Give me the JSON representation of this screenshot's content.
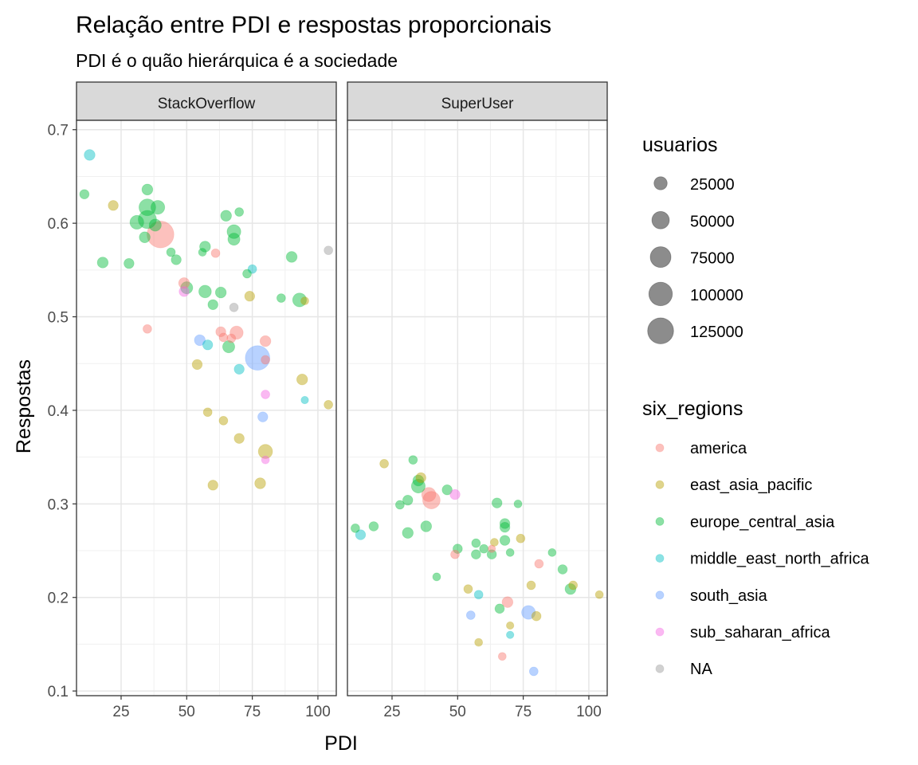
{
  "chart_data": {
    "type": "scatter",
    "title": "Relação entre PDI e respostas proporcionais",
    "subtitle": "PDI é o quão hierárquica é a sociedade",
    "xlabel": "PDI",
    "ylabel": "Respostas",
    "xlim": [
      8,
      107
    ],
    "ylim": [
      0.095,
      0.71
    ],
    "x_ticks": [
      25,
      50,
      75,
      100
    ],
    "y_ticks": [
      0.1,
      0.2,
      0.3,
      0.4,
      0.5,
      0.6,
      0.7
    ],
    "grid": true,
    "point_opacity": 0.45,
    "legend_position": "right",
    "size_legend": {
      "title": "usuarios",
      "values": [
        25000,
        50000,
        75000,
        100000,
        125000
      ]
    },
    "color_legend": {
      "title": "six_regions",
      "entries": [
        {
          "name": "america",
          "color": "#F8766D"
        },
        {
          "name": "east_asia_pacific",
          "color": "#B79F00"
        },
        {
          "name": "europe_central_asia",
          "color": "#00BA38"
        },
        {
          "name": "middle_east_north_africa",
          "color": "#00BFC4"
        },
        {
          "name": "south_asia",
          "color": "#619CFF"
        },
        {
          "name": "sub_saharan_africa",
          "color": "#F564E3"
        },
        {
          "name": "NA",
          "color": "#999999"
        }
      ]
    },
    "facets": [
      {
        "label": "StackOverflow",
        "points": [
          {
            "x": 13,
            "y": 0.673,
            "region": "middle_east_north_africa",
            "users": 15000
          },
          {
            "x": 11,
            "y": 0.631,
            "region": "europe_central_asia",
            "users": 10000
          },
          {
            "x": 22,
            "y": 0.619,
            "region": "east_asia_pacific",
            "users": 12000
          },
          {
            "x": 35,
            "y": 0.636,
            "region": "europe_central_asia",
            "users": 15000
          },
          {
            "x": 35,
            "y": 0.617,
            "region": "europe_central_asia",
            "users": 45000
          },
          {
            "x": 39,
            "y": 0.617,
            "region": "europe_central_asia",
            "users": 28000
          },
          {
            "x": 31,
            "y": 0.601,
            "region": "europe_central_asia",
            "users": 28000
          },
          {
            "x": 35,
            "y": 0.604,
            "region": "europe_central_asia",
            "users": 55000
          },
          {
            "x": 38,
            "y": 0.598,
            "region": "europe_central_asia",
            "users": 20000
          },
          {
            "x": 40,
            "y": 0.588,
            "region": "america",
            "users": 135000
          },
          {
            "x": 34,
            "y": 0.585,
            "region": "europe_central_asia",
            "users": 15000
          },
          {
            "x": 18,
            "y": 0.558,
            "region": "europe_central_asia",
            "users": 15000
          },
          {
            "x": 28,
            "y": 0.557,
            "region": "europe_central_asia",
            "users": 12000
          },
          {
            "x": 44,
            "y": 0.569,
            "region": "europe_central_asia",
            "users": 8000
          },
          {
            "x": 46,
            "y": 0.561,
            "region": "europe_central_asia",
            "users": 12000
          },
          {
            "x": 57,
            "y": 0.575,
            "region": "europe_central_asia",
            "users": 15000
          },
          {
            "x": 56,
            "y": 0.569,
            "region": "europe_central_asia",
            "users": 6000
          },
          {
            "x": 61,
            "y": 0.568,
            "region": "america",
            "users": 8000
          },
          {
            "x": 65,
            "y": 0.608,
            "region": "europe_central_asia",
            "users": 15000
          },
          {
            "x": 70,
            "y": 0.612,
            "region": "europe_central_asia",
            "users": 8000
          },
          {
            "x": 68,
            "y": 0.591,
            "region": "europe_central_asia",
            "users": 28000
          },
          {
            "x": 68,
            "y": 0.583,
            "region": "europe_central_asia",
            "users": 20000
          },
          {
            "x": 75,
            "y": 0.551,
            "region": "middle_east_north_africa",
            "users": 8000
          },
          {
            "x": 73,
            "y": 0.546,
            "region": "europe_central_asia",
            "users": 8000
          },
          {
            "x": 90,
            "y": 0.564,
            "region": "europe_central_asia",
            "users": 15000
          },
          {
            "x": 104,
            "y": 0.571,
            "region": "NA",
            "users": 8000
          },
          {
            "x": 49,
            "y": 0.536,
            "region": "america",
            "users": 15000
          },
          {
            "x": 50,
            "y": 0.531,
            "region": "europe_central_asia",
            "users": 20000
          },
          {
            "x": 49,
            "y": 0.527,
            "region": "sub_saharan_africa",
            "users": 12000
          },
          {
            "x": 57,
            "y": 0.527,
            "region": "europe_central_asia",
            "users": 22000
          },
          {
            "x": 63,
            "y": 0.526,
            "region": "europe_central_asia",
            "users": 15000
          },
          {
            "x": 60,
            "y": 0.513,
            "region": "europe_central_asia",
            "users": 12000
          },
          {
            "x": 74,
            "y": 0.522,
            "region": "east_asia_pacific",
            "users": 12000
          },
          {
            "x": 68,
            "y": 0.51,
            "region": "NA",
            "users": 8000
          },
          {
            "x": 86,
            "y": 0.52,
            "region": "europe_central_asia",
            "users": 8000
          },
          {
            "x": 93,
            "y": 0.518,
            "region": "europe_central_asia",
            "users": 28000
          },
          {
            "x": 95,
            "y": 0.517,
            "region": "east_asia_pacific",
            "users": 6000
          },
          {
            "x": 35,
            "y": 0.487,
            "region": "america",
            "users": 8000
          },
          {
            "x": 63,
            "y": 0.484,
            "region": "america",
            "users": 12000
          },
          {
            "x": 64,
            "y": 0.478,
            "region": "america",
            "users": 8000
          },
          {
            "x": 67,
            "y": 0.477,
            "region": "america",
            "users": 8000
          },
          {
            "x": 69,
            "y": 0.483,
            "region": "america",
            "users": 25000
          },
          {
            "x": 55,
            "y": 0.475,
            "region": "south_asia",
            "users": 15000
          },
          {
            "x": 58,
            "y": 0.47,
            "region": "middle_east_north_africa",
            "users": 12000
          },
          {
            "x": 66,
            "y": 0.468,
            "region": "europe_central_asia",
            "users": 20000
          },
          {
            "x": 80,
            "y": 0.474,
            "region": "america",
            "users": 15000
          },
          {
            "x": 77,
            "y": 0.456,
            "region": "south_asia",
            "users": 110000
          },
          {
            "x": 80,
            "y": 0.454,
            "region": "america",
            "users": 8000
          },
          {
            "x": 54,
            "y": 0.449,
            "region": "east_asia_pacific",
            "users": 12000
          },
          {
            "x": 70,
            "y": 0.444,
            "region": "middle_east_north_africa",
            "users": 12000
          },
          {
            "x": 94,
            "y": 0.433,
            "region": "east_asia_pacific",
            "users": 15000
          },
          {
            "x": 80,
            "y": 0.417,
            "region": "sub_saharan_africa",
            "users": 8000
          },
          {
            "x": 95,
            "y": 0.411,
            "region": "middle_east_north_africa",
            "users": 5000
          },
          {
            "x": 104,
            "y": 0.406,
            "region": "east_asia_pacific",
            "users": 8000
          },
          {
            "x": 58,
            "y": 0.398,
            "region": "east_asia_pacific",
            "users": 8000
          },
          {
            "x": 79,
            "y": 0.393,
            "region": "south_asia",
            "users": 12000
          },
          {
            "x": 64,
            "y": 0.389,
            "region": "east_asia_pacific",
            "users": 8000
          },
          {
            "x": 70,
            "y": 0.37,
            "region": "east_asia_pacific",
            "users": 12000
          },
          {
            "x": 80,
            "y": 0.356,
            "region": "east_asia_pacific",
            "users": 30000
          },
          {
            "x": 80,
            "y": 0.347,
            "region": "sub_saharan_africa",
            "users": 6000
          },
          {
            "x": 60,
            "y": 0.32,
            "region": "east_asia_pacific",
            "users": 12000
          },
          {
            "x": 78,
            "y": 0.322,
            "region": "east_asia_pacific",
            "users": 15000
          }
        ]
      },
      {
        "label": "SuperUser",
        "points": [
          {
            "x": 22,
            "y": 0.343,
            "region": "east_asia_pacific",
            "users": 8000
          },
          {
            "x": 33,
            "y": 0.347,
            "region": "europe_central_asia",
            "users": 8000
          },
          {
            "x": 36,
            "y": 0.328,
            "region": "east_asia_pacific",
            "users": 12000
          },
          {
            "x": 35,
            "y": 0.325,
            "region": "europe_central_asia",
            "users": 15000
          },
          {
            "x": 35,
            "y": 0.319,
            "region": "europe_central_asia",
            "users": 28000
          },
          {
            "x": 46,
            "y": 0.315,
            "region": "europe_central_asia",
            "users": 12000
          },
          {
            "x": 49,
            "y": 0.31,
            "region": "sub_saharan_africa",
            "users": 12000
          },
          {
            "x": 39,
            "y": 0.31,
            "region": "america",
            "users": 30000
          },
          {
            "x": 40,
            "y": 0.304,
            "region": "america",
            "users": 50000
          },
          {
            "x": 31,
            "y": 0.304,
            "region": "europe_central_asia",
            "users": 12000
          },
          {
            "x": 28,
            "y": 0.299,
            "region": "europe_central_asia",
            "users": 8000
          },
          {
            "x": 65,
            "y": 0.301,
            "region": "europe_central_asia",
            "users": 12000
          },
          {
            "x": 73,
            "y": 0.3,
            "region": "europe_central_asia",
            "users": 6000
          },
          {
            "x": 11,
            "y": 0.274,
            "region": "europe_central_asia",
            "users": 8000
          },
          {
            "x": 13,
            "y": 0.267,
            "region": "middle_east_north_africa",
            "users": 12000
          },
          {
            "x": 18,
            "y": 0.276,
            "region": "europe_central_asia",
            "users": 10000
          },
          {
            "x": 31,
            "y": 0.269,
            "region": "europe_central_asia",
            "users": 15000
          },
          {
            "x": 38,
            "y": 0.276,
            "region": "europe_central_asia",
            "users": 15000
          },
          {
            "x": 68,
            "y": 0.279,
            "region": "europe_central_asia",
            "users": 12000
          },
          {
            "x": 68,
            "y": 0.275,
            "region": "europe_central_asia",
            "users": 12000
          },
          {
            "x": 74,
            "y": 0.263,
            "region": "east_asia_pacific",
            "users": 8000
          },
          {
            "x": 57,
            "y": 0.258,
            "region": "europe_central_asia",
            "users": 8000
          },
          {
            "x": 64,
            "y": 0.259,
            "region": "east_asia_pacific",
            "users": 6000
          },
          {
            "x": 68,
            "y": 0.261,
            "region": "europe_central_asia",
            "users": 12000
          },
          {
            "x": 50,
            "y": 0.252,
            "region": "europe_central_asia",
            "users": 10000
          },
          {
            "x": 60,
            "y": 0.252,
            "region": "europe_central_asia",
            "users": 8000
          },
          {
            "x": 63,
            "y": 0.252,
            "region": "america",
            "users": 5000
          },
          {
            "x": 49,
            "y": 0.246,
            "region": "america",
            "users": 8000
          },
          {
            "x": 57,
            "y": 0.246,
            "region": "europe_central_asia",
            "users": 10000
          },
          {
            "x": 63,
            "y": 0.246,
            "region": "europe_central_asia",
            "users": 10000
          },
          {
            "x": 70,
            "y": 0.248,
            "region": "europe_central_asia",
            "users": 6000
          },
          {
            "x": 86,
            "y": 0.248,
            "region": "europe_central_asia",
            "users": 6000
          },
          {
            "x": 81,
            "y": 0.236,
            "region": "america",
            "users": 8000
          },
          {
            "x": 90,
            "y": 0.23,
            "region": "europe_central_asia",
            "users": 10000
          },
          {
            "x": 42,
            "y": 0.222,
            "region": "europe_central_asia",
            "users": 6000
          },
          {
            "x": 78,
            "y": 0.213,
            "region": "east_asia_pacific",
            "users": 8000
          },
          {
            "x": 94,
            "y": 0.213,
            "region": "east_asia_pacific",
            "users": 8000
          },
          {
            "x": 93,
            "y": 0.209,
            "region": "europe_central_asia",
            "users": 15000
          },
          {
            "x": 54,
            "y": 0.209,
            "region": "east_asia_pacific",
            "users": 8000
          },
          {
            "x": 58,
            "y": 0.203,
            "region": "middle_east_north_africa",
            "users": 8000
          },
          {
            "x": 104,
            "y": 0.203,
            "region": "east_asia_pacific",
            "users": 6000
          },
          {
            "x": 69,
            "y": 0.195,
            "region": "america",
            "users": 15000
          },
          {
            "x": 66,
            "y": 0.188,
            "region": "europe_central_asia",
            "users": 10000
          },
          {
            "x": 77,
            "y": 0.184,
            "region": "south_asia",
            "users": 28000
          },
          {
            "x": 80,
            "y": 0.18,
            "region": "east_asia_pacific",
            "users": 10000
          },
          {
            "x": 55,
            "y": 0.181,
            "region": "south_asia",
            "users": 8000
          },
          {
            "x": 70,
            "y": 0.17,
            "region": "east_asia_pacific",
            "users": 5000
          },
          {
            "x": 70,
            "y": 0.16,
            "region": "middle_east_north_africa",
            "users": 5000
          },
          {
            "x": 58,
            "y": 0.152,
            "region": "east_asia_pacific",
            "users": 6000
          },
          {
            "x": 67,
            "y": 0.137,
            "region": "america",
            "users": 6000
          },
          {
            "x": 79,
            "y": 0.121,
            "region": "south_asia",
            "users": 8000
          }
        ]
      }
    ]
  }
}
